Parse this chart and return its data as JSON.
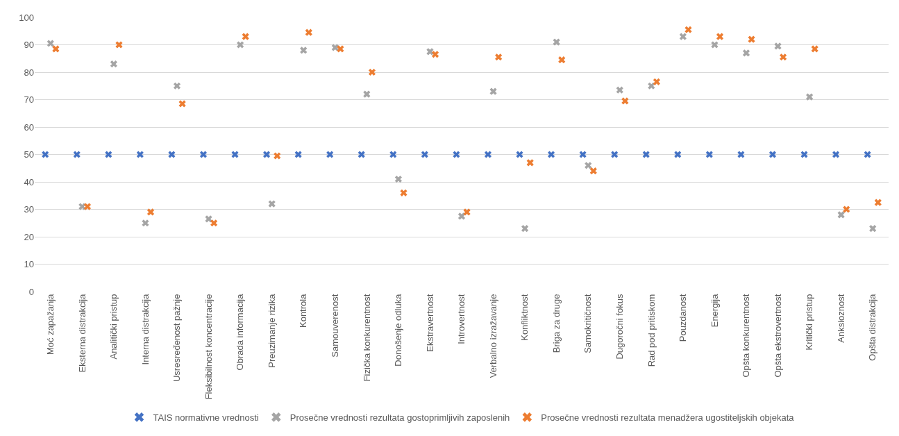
{
  "chart_data": {
    "type": "scatter",
    "categories": [
      "Moć zapažanja",
      "Eksterna distrakcija",
      "Analitički pristup",
      "Interna distrakcija",
      "Usresređenost pažnje",
      "Fleksibilnost koncentracije",
      "Obrada informacija",
      "Preuzimanje rizika",
      "Kontrola",
      "Samouverenost",
      "Fizička konkurentnost",
      "Donošenje odluka",
      "Ekstravertnost",
      "Introvertnost",
      "Verbalno izražavanje",
      "Konfliktnost",
      "Briga za druge",
      "Samokritičnost",
      "Dugoročni fokus",
      "Rad pod pritiskom",
      "Pouzdanost",
      "Energija",
      "Opšta konkurentnost",
      "Opšta ekstrovertnost",
      "Kritički pristup",
      "Anksioznost",
      "Opšta distrakcija"
    ],
    "series": [
      {
        "name": "TAIS normativne vrednosti",
        "color": "#4472c4",
        "values": [
          50,
          50,
          50,
          50,
          50,
          50,
          50,
          50,
          50,
          50,
          50,
          50,
          50,
          50,
          50,
          50,
          50,
          50,
          50,
          50,
          50,
          50,
          50,
          50,
          50,
          50,
          50
        ]
      },
      {
        "name": "Prosečne vrednosti rezultata gostoprimljivih zaposlenih",
        "color": "#a5a5a5",
        "values": [
          90.5,
          31,
          83,
          25,
          75,
          26.5,
          90,
          32,
          88,
          89,
          72,
          41,
          87.5,
          27.5,
          73,
          23,
          91,
          46,
          73.5,
          75,
          93,
          90,
          87,
          89.5,
          71,
          28,
          23
        ]
      },
      {
        "name": "Prosečne vrednosti rezultata menadžera ugostiteljskih objekata",
        "color": "#ed7d31",
        "values": [
          88.5,
          31,
          90,
          29,
          68.5,
          25,
          93,
          49.5,
          94.5,
          88.5,
          80,
          36,
          86.5,
          29,
          85.5,
          47,
          84.5,
          44,
          69.5,
          76.5,
          95.5,
          93,
          92,
          85.5,
          88.5,
          30,
          32.5
        ]
      }
    ],
    "ylim": [
      0,
      100
    ],
    "yticks": [
      0,
      10,
      20,
      30,
      40,
      50,
      60,
      70,
      80,
      90,
      100
    ],
    "grid": "y",
    "legend": "bottom",
    "marker": "cross"
  }
}
